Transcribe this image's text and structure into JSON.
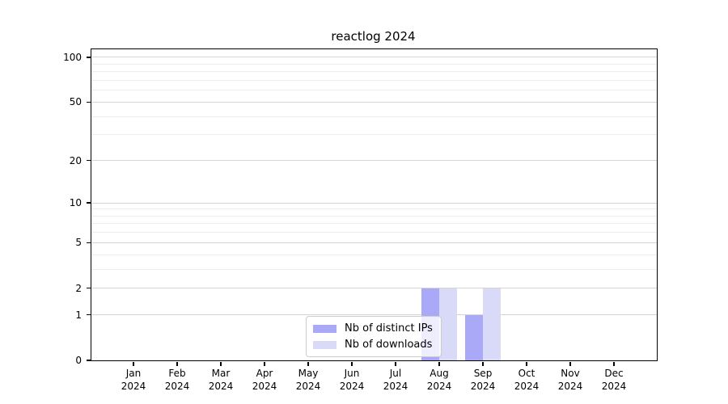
{
  "chart_data": {
    "type": "bar",
    "title": "reactlog 2024",
    "categories": [
      "Jan 2024",
      "Feb 2024",
      "Mar 2024",
      "Apr 2024",
      "May 2024",
      "Jun 2024",
      "Jul 2024",
      "Aug 2024",
      "Sep 2024",
      "Oct 2024",
      "Nov 2024",
      "Dec 2024"
    ],
    "series": [
      {
        "name": "Nb of distinct IPs",
        "color": "#a9a9f7",
        "values": [
          0,
          0,
          0,
          0,
          0,
          0,
          0,
          2,
          1,
          0,
          0,
          0
        ]
      },
      {
        "name": "Nb of downloads",
        "color": "#d9d9f8",
        "values": [
          0,
          0,
          0,
          0,
          0,
          0,
          0,
          2,
          2,
          0,
          0,
          0
        ]
      }
    ],
    "y_axis": {
      "scale": "log10(1+v)",
      "ylim": [
        0,
        113
      ],
      "major_ticks": [
        0,
        1,
        2,
        5,
        10,
        20,
        50,
        100
      ],
      "minor_gridlines": [
        3,
        4,
        6,
        7,
        8,
        9,
        30,
        40,
        60,
        70,
        80,
        90
      ],
      "major_grid_color": "#d4d4d4",
      "minor_grid_color": "#ededed"
    },
    "x_axis": {
      "tick_labels_two_line": true
    },
    "legend": {
      "position": "inside-lower-center",
      "background": "rgba(255,255,255,0.8)",
      "border_color": "#cccccc"
    },
    "grid": true,
    "xlabel": "",
    "ylabel": ""
  }
}
